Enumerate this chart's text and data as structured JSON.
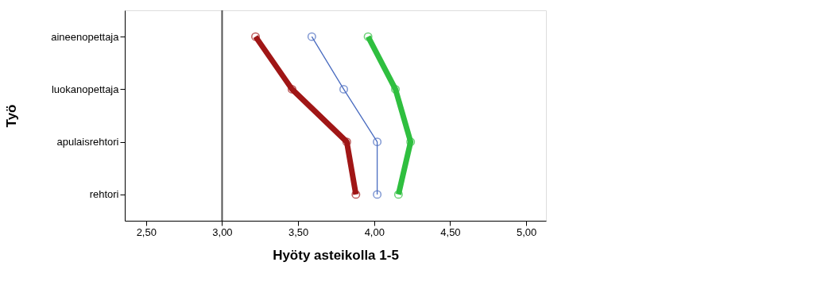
{
  "chart_data": {
    "type": "line",
    "xlabel": "Hyöty asteikolla 1-5",
    "ylabel": "Työ",
    "orientation": "horizontal",
    "categories": [
      "aineenopettaja",
      "luokanopettaja",
      "apulaisrehtori",
      "rehtori"
    ],
    "series": [
      {
        "color": "#a01616",
        "values": [
          3.22,
          3.46,
          3.82,
          3.88
        ]
      },
      {
        "color": "#4a6cc0",
        "values": [
          3.59,
          3.8,
          4.02,
          4.02
        ]
      },
      {
        "color": "#2fbf3f",
        "values": [
          3.96,
          4.14,
          4.24,
          4.16
        ]
      }
    ],
    "xlim": [
      2.36,
      5.13
    ],
    "xticks": [
      {
        "value": 2.5,
        "label": "2,50"
      },
      {
        "value": 3.0,
        "label": "3,00"
      },
      {
        "value": 3.5,
        "label": "3,50"
      },
      {
        "value": 4.0,
        "label": "4,00"
      },
      {
        "value": 4.5,
        "label": "4,50"
      },
      {
        "value": 5.0,
        "label": "5,00"
      }
    ],
    "ref_lines": [
      {
        "axis": "x",
        "value": 3.0,
        "color": "#555555"
      }
    ],
    "marker": "circle",
    "grid": false
  }
}
